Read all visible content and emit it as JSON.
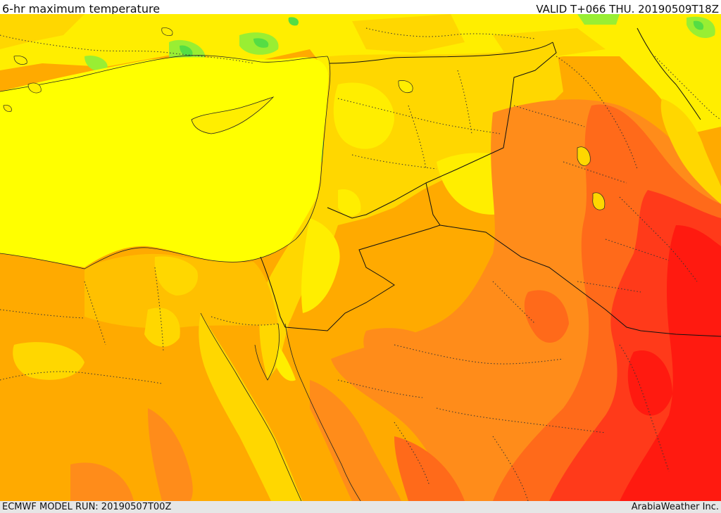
{
  "header": {
    "title": "6-hr maximum temperature",
    "valid": "VALID T+066 THU. 20190509T18Z"
  },
  "footer": {
    "model_run": "ECMWF MODEL RUN: 20190507T00Z",
    "credit": "ArabiaWeather Inc."
  },
  "map": {
    "colors": {
      "green_light": "#99ee33",
      "green": "#55dd44",
      "yellow_bright": "#ffff00",
      "yellow": "#ffee00",
      "yellow_orange": "#ffd700",
      "orange_light": "#ffc000",
      "orange": "#ffaa00",
      "orange_dark": "#ff8c1a",
      "red_orange": "#ff6a1a",
      "red": "#ff3a1a",
      "red_deep": "#ff1a10"
    }
  }
}
